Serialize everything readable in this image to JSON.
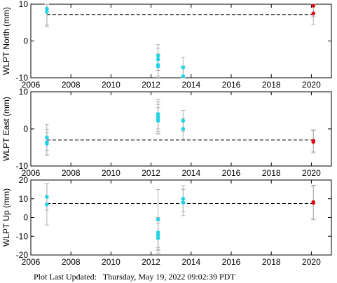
{
  "footer": {
    "label": "Plot Last Updated:",
    "value": "Thursday, May 19, 2022 09:02:39 PDT"
  },
  "colors": {
    "point": "#22d3e6",
    "recent": "#dd1111",
    "errorbar": "#b0b0b0",
    "reference": "#000000"
  },
  "chart_data": [
    {
      "type": "scatter",
      "ylabel": "WLPT North (mm)",
      "xlim": [
        2006,
        2021
      ],
      "ylim": [
        -10,
        10
      ],
      "x_ticks": [
        2006,
        2008,
        2010,
        2012,
        2014,
        2016,
        2018,
        2020
      ],
      "y_ticks": [
        -10,
        0,
        10
      ],
      "reference_line": 7.2,
      "grid": false,
      "series": [
        {
          "color": "cyan",
          "points": [
            {
              "x": 2006.8,
              "y": 8.8,
              "err": 4.5
            },
            {
              "x": 2006.8,
              "y": 7.9,
              "err": 4.0
            },
            {
              "x": 2012.35,
              "y": -4.0,
              "err": 3.0
            },
            {
              "x": 2012.35,
              "y": -5.0,
              "err": 3.0
            },
            {
              "x": 2012.35,
              "y": -6.5,
              "err": 3.0
            },
            {
              "x": 2012.35,
              "y": -6.9,
              "err": 3.0
            },
            {
              "x": 2013.6,
              "y": -7.2,
              "err": 2.8
            },
            {
              "x": 2013.6,
              "y": -9.6,
              "err": 2.8
            }
          ]
        },
        {
          "color": "red",
          "points": [
            {
              "x": 2020.1,
              "y": 9.6,
              "err": 3.0
            },
            {
              "x": 2020.1,
              "y": 7.5,
              "err": 3.0
            }
          ]
        }
      ]
    },
    {
      "type": "scatter",
      "ylabel": "WLPT East (mm)",
      "xlim": [
        2006,
        2021
      ],
      "ylim": [
        -10,
        10
      ],
      "x_ticks": [
        2006,
        2008,
        2010,
        2012,
        2014,
        2016,
        2018,
        2020
      ],
      "y_ticks": [
        -10,
        0,
        10
      ],
      "reference_line": -3.0,
      "grid": false,
      "series": [
        {
          "color": "cyan",
          "points": [
            {
              "x": 2006.8,
              "y": -2.3,
              "err": 3.5
            },
            {
              "x": 2006.8,
              "y": -3.6,
              "err": 3.5
            },
            {
              "x": 2006.8,
              "y": -4.0,
              "err": 3.0
            },
            {
              "x": 2012.35,
              "y": 4.0,
              "err": 4.0
            },
            {
              "x": 2012.35,
              "y": 3.3,
              "err": 4.0
            },
            {
              "x": 2012.35,
              "y": 2.6,
              "err": 4.0
            },
            {
              "x": 2012.35,
              "y": 2.2,
              "err": 3.5
            },
            {
              "x": 2013.6,
              "y": 2.2,
              "err": 2.8
            },
            {
              "x": 2013.6,
              "y": 0.0,
              "err": 2.8
            }
          ]
        },
        {
          "color": "red",
          "points": [
            {
              "x": 2020.1,
              "y": -3.2,
              "err": 3.0
            },
            {
              "x": 2020.1,
              "y": -3.5,
              "err": 3.0
            }
          ]
        }
      ]
    },
    {
      "type": "scatter",
      "ylabel": "WLPT Up (mm)",
      "xlim": [
        2006,
        2021
      ],
      "ylim": [
        -20,
        20
      ],
      "x_ticks": [
        2006,
        2008,
        2010,
        2012,
        2014,
        2016,
        2018,
        2020
      ],
      "y_ticks": [
        -20,
        -10,
        0,
        10,
        20
      ],
      "reference_line": 7.5,
      "grid": false,
      "series": [
        {
          "color": "cyan",
          "points": [
            {
              "x": 2006.8,
              "y": 11.0,
              "err": 7.0
            },
            {
              "x": 2006.8,
              "y": 7.0,
              "err": 11.0
            },
            {
              "x": 2012.35,
              "y": -1.0,
              "err": 16.0
            },
            {
              "x": 2012.35,
              "y": -8.0,
              "err": 8.0
            },
            {
              "x": 2012.35,
              "y": -9.5,
              "err": 8.0
            },
            {
              "x": 2012.35,
              "y": -11.0,
              "err": 8.0
            },
            {
              "x": 2013.6,
              "y": 10.0,
              "err": 7.0
            },
            {
              "x": 2013.6,
              "y": 8.0,
              "err": 7.0
            }
          ]
        },
        {
          "color": "red",
          "points": [
            {
              "x": 2020.1,
              "y": 8.2,
              "err": 9.0
            },
            {
              "x": 2020.1,
              "y": 7.8,
              "err": 9.0
            }
          ]
        }
      ]
    }
  ]
}
